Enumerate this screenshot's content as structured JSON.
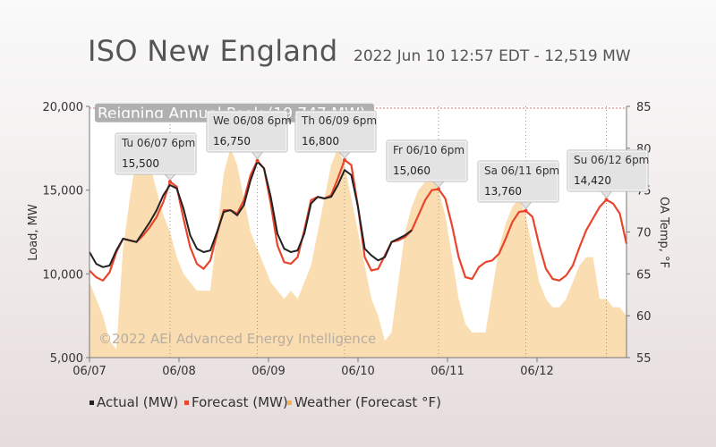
{
  "header": {
    "title": "ISO New England",
    "subtitle": "2022 Jun 10 12:57 EDT - 12,519 MW"
  },
  "colors": {
    "actual": "#222222",
    "forecast": "#e8452c",
    "weather": "#f9d9a8",
    "peak_banner": "#b0b0b0"
  },
  "chart_data": {
    "type": "line",
    "ylabel": "Load, MW",
    "y2label": "OA Temp, °F",
    "ylim": [
      5000,
      20000
    ],
    "y2lim": [
      55,
      85
    ],
    "yticks": [
      "5,000",
      "10,000",
      "15,000",
      "20,000"
    ],
    "y2ticks": [
      "55",
      "60",
      "65",
      "70",
      "75",
      "80",
      "85"
    ],
    "xticks": [
      "06/07",
      "06/08",
      "06/09",
      "06/10",
      "06/11",
      "06/12"
    ],
    "peak_label": "Reigning Annual Peak (19,747 MW)",
    "peak_value": 19747,
    "watermark": "©2022 AEI Advanced Energy Intelligence",
    "series": [
      {
        "name": "Actual (MW)",
        "points": [
          [
            0,
            11300
          ],
          [
            1,
            10600
          ],
          [
            2,
            10400
          ],
          [
            3,
            10500
          ],
          [
            4,
            11400
          ],
          [
            5,
            12100
          ],
          [
            6,
            12000
          ],
          [
            7,
            11900
          ],
          [
            8,
            12500
          ],
          [
            9,
            13100
          ],
          [
            10,
            13800
          ],
          [
            11,
            14700
          ],
          [
            12,
            15300
          ],
          [
            13,
            15100
          ],
          [
            14,
            13900
          ],
          [
            15,
            12300
          ],
          [
            16,
            11500
          ],
          [
            17,
            11300
          ],
          [
            18,
            11400
          ],
          [
            19,
            12500
          ],
          [
            20,
            13700
          ],
          [
            21,
            13800
          ],
          [
            22,
            13500
          ],
          [
            23,
            14100
          ],
          [
            24,
            15600
          ],
          [
            25,
            16700
          ],
          [
            26,
            16300
          ],
          [
            27,
            14600
          ],
          [
            28,
            12400
          ],
          [
            29,
            11500
          ],
          [
            30,
            11300
          ],
          [
            31,
            11400
          ],
          [
            32,
            12400
          ],
          [
            33,
            14200
          ],
          [
            34,
            14600
          ],
          [
            35,
            14500
          ],
          [
            36,
            14600
          ],
          [
            37,
            15300
          ],
          [
            38,
            16200
          ],
          [
            39,
            15900
          ],
          [
            40,
            14000
          ],
          [
            41,
            11500
          ],
          [
            42,
            11100
          ],
          [
            43,
            10800
          ],
          [
            44,
            11000
          ],
          [
            45,
            11900
          ],
          [
            46,
            12100
          ],
          [
            47,
            12300
          ],
          [
            48,
            12600
          ]
        ]
      },
      {
        "name": "Forecast (MW)",
        "points": [
          [
            0,
            10200
          ],
          [
            1,
            9800
          ],
          [
            2,
            9600
          ],
          [
            3,
            10100
          ],
          [
            4,
            11300
          ],
          [
            5,
            12100
          ],
          [
            6,
            12000
          ],
          [
            7,
            11900
          ],
          [
            8,
            12300
          ],
          [
            9,
            12800
          ],
          [
            10,
            13400
          ],
          [
            11,
            14300
          ],
          [
            12,
            15500
          ],
          [
            13,
            15200
          ],
          [
            14,
            13300
          ],
          [
            15,
            11600
          ],
          [
            16,
            10600
          ],
          [
            17,
            10300
          ],
          [
            18,
            10800
          ],
          [
            19,
            12400
          ],
          [
            20,
            13800
          ],
          [
            21,
            13800
          ],
          [
            22,
            13600
          ],
          [
            23,
            14400
          ],
          [
            24,
            15900
          ],
          [
            25,
            16750
          ],
          [
            26,
            16300
          ],
          [
            27,
            14200
          ],
          [
            28,
            11700
          ],
          [
            29,
            10700
          ],
          [
            30,
            10600
          ],
          [
            31,
            11000
          ],
          [
            32,
            12600
          ],
          [
            33,
            14400
          ],
          [
            34,
            14600
          ],
          [
            35,
            14500
          ],
          [
            36,
            14700
          ],
          [
            37,
            15700
          ],
          [
            38,
            16800
          ],
          [
            39,
            16500
          ],
          [
            40,
            14000
          ],
          [
            41,
            11000
          ],
          [
            42,
            10200
          ],
          [
            43,
            10300
          ],
          [
            44,
            11100
          ],
          [
            45,
            11900
          ],
          [
            46,
            12000
          ],
          [
            47,
            12200
          ],
          [
            48,
            12600
          ],
          [
            49,
            13500
          ],
          [
            50,
            14400
          ],
          [
            51,
            15000
          ],
          [
            52,
            15060
          ],
          [
            53,
            14500
          ],
          [
            54,
            12900
          ],
          [
            55,
            11000
          ],
          [
            56,
            9800
          ],
          [
            57,
            9700
          ],
          [
            58,
            10400
          ],
          [
            59,
            10700
          ],
          [
            60,
            10800
          ],
          [
            61,
            11200
          ],
          [
            62,
            12100
          ],
          [
            63,
            13100
          ],
          [
            64,
            13700
          ],
          [
            65,
            13760
          ],
          [
            66,
            13400
          ],
          [
            67,
            11700
          ],
          [
            68,
            10300
          ],
          [
            69,
            9700
          ],
          [
            70,
            9600
          ],
          [
            71,
            9900
          ],
          [
            72,
            10500
          ],
          [
            73,
            11600
          ],
          [
            74,
            12600
          ],
          [
            75,
            13300
          ],
          [
            76,
            14000
          ],
          [
            77,
            14420
          ],
          [
            78,
            14200
          ],
          [
            79,
            13600
          ],
          [
            80,
            11800
          ]
        ]
      },
      {
        "name": "Weather (Forecast °F)",
        "points": [
          [
            0,
            64
          ],
          [
            1,
            62
          ],
          [
            2,
            60
          ],
          [
            3,
            57
          ],
          [
            4,
            56
          ],
          [
            5,
            68
          ],
          [
            6,
            74
          ],
          [
            7,
            79
          ],
          [
            8,
            80
          ],
          [
            9,
            78
          ],
          [
            10,
            75
          ],
          [
            11,
            72
          ],
          [
            12,
            70
          ],
          [
            13,
            67
          ],
          [
            14,
            65
          ],
          [
            15,
            64
          ],
          [
            16,
            63
          ],
          [
            17,
            63
          ],
          [
            18,
            63
          ],
          [
            19,
            70
          ],
          [
            20,
            77
          ],
          [
            21,
            80
          ],
          [
            22,
            78
          ],
          [
            23,
            74
          ],
          [
            24,
            70
          ],
          [
            25,
            68
          ],
          [
            26,
            66
          ],
          [
            27,
            64
          ],
          [
            28,
            63
          ],
          [
            29,
            62
          ],
          [
            30,
            63
          ],
          [
            31,
            62
          ],
          [
            32,
            64
          ],
          [
            33,
            66
          ],
          [
            34,
            70
          ],
          [
            35,
            74
          ],
          [
            36,
            78
          ],
          [
            37,
            80
          ],
          [
            38,
            78
          ],
          [
            39,
            74
          ],
          [
            40,
            70
          ],
          [
            41,
            66
          ],
          [
            42,
            62
          ],
          [
            43,
            60
          ],
          [
            44,
            57
          ],
          [
            45,
            58
          ],
          [
            46,
            64
          ],
          [
            47,
            70
          ],
          [
            48,
            73
          ],
          [
            49,
            75
          ],
          [
            50,
            76
          ],
          [
            51,
            77
          ],
          [
            52,
            75
          ],
          [
            53,
            72
          ],
          [
            54,
            67
          ],
          [
            55,
            62
          ],
          [
            56,
            59
          ],
          [
            57,
            58
          ],
          [
            58,
            58
          ],
          [
            59,
            58
          ],
          [
            60,
            63
          ],
          [
            61,
            68
          ],
          [
            62,
            71
          ],
          [
            63,
            73
          ],
          [
            64,
            74
          ],
          [
            65,
            72
          ],
          [
            66,
            68
          ],
          [
            67,
            64
          ],
          [
            68,
            62
          ],
          [
            69,
            61
          ],
          [
            70,
            61
          ],
          [
            71,
            62
          ],
          [
            72,
            64
          ],
          [
            73,
            66
          ],
          [
            74,
            67
          ],
          [
            75,
            67
          ],
          [
            76,
            62
          ],
          [
            77,
            62
          ],
          [
            78,
            61
          ],
          [
            79,
            61
          ],
          [
            80,
            60
          ]
        ]
      }
    ],
    "annotations": [
      {
        "label": "Tu 06/07 6pm",
        "value": "15,500",
        "x": 12,
        "y": 15500,
        "highlight": false
      },
      {
        "label": "We 06/08 6pm",
        "value": "16,750",
        "x": 25,
        "y": 16750,
        "highlight": false
      },
      {
        "label": "Th 06/09 6pm",
        "value": "16,800",
        "x": 38,
        "y": 16800,
        "highlight": false
      },
      {
        "label": "Fr 06/10 6pm",
        "value": "15,060",
        "x": 52,
        "y": 15060,
        "highlight": true
      },
      {
        "label": "Sa 06/11 6pm",
        "value": "13,760",
        "x": 65,
        "y": 13760,
        "highlight": false
      },
      {
        "label": "Su 06/12 6pm",
        "value": "14,420",
        "x": 77,
        "y": 14420,
        "highlight": false
      }
    ],
    "legend": [
      {
        "label": "Actual (MW)"
      },
      {
        "label": "Forecast (MW)"
      },
      {
        "label": "Weather (Forecast °F)"
      }
    ],
    "legend_position": "bottom-left"
  }
}
